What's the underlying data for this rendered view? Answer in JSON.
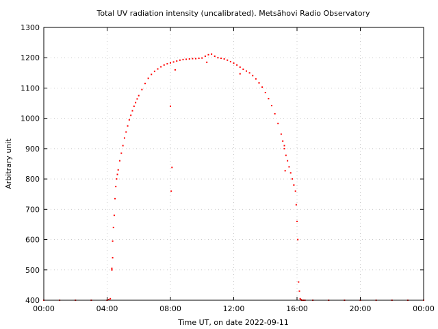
{
  "chart_data": {
    "type": "scatter",
    "title": "Total UV radiation intensity (uncalibrated). Metsähovi Radio Observatory",
    "xlabel": "Time UT, on date 2022-09-11",
    "ylabel": "Arbitrary unit",
    "xlim": [
      0,
      24
    ],
    "ylim": [
      400,
      1300
    ],
    "x_ticks": [
      0,
      4,
      8,
      12,
      16,
      20,
      24
    ],
    "x_tick_labels": [
      "00:00",
      "04:00",
      "08:00",
      "12:00",
      "16:00",
      "20:00",
      "00:00"
    ],
    "y_ticks": [
      400,
      500,
      600,
      700,
      800,
      900,
      1000,
      1100,
      1200,
      1300
    ],
    "y_tick_labels": [
      "400",
      "500",
      "600",
      "700",
      "800",
      "900",
      "1000",
      "1100",
      "1200",
      "1300"
    ],
    "grid": true,
    "color": "#ff0000",
    "series": [
      {
        "x": [
          0.0,
          1.0,
          2.0,
          3.0,
          4.0,
          4.1,
          4.2,
          4.3,
          4.35,
          4.4,
          4.45,
          4.5,
          4.55,
          4.6,
          4.65,
          4.7,
          4.8,
          4.9,
          5.0,
          5.1,
          5.2,
          5.3,
          5.4,
          5.5,
          5.6,
          5.7,
          5.8,
          5.9,
          6.0,
          6.2,
          6.4,
          6.6,
          6.8,
          7.0,
          7.2,
          7.4,
          7.6,
          7.8,
          8.0,
          8.2,
          8.4,
          8.6,
          8.8,
          9.0,
          9.2,
          9.4,
          9.6,
          9.8,
          10.0,
          10.2,
          10.4,
          10.6,
          10.8,
          11.0,
          11.2,
          11.4,
          11.6,
          11.8,
          12.0,
          12.2,
          12.4,
          12.6,
          12.8,
          13.0,
          13.2,
          13.4,
          13.6,
          13.8,
          14.0,
          14.2,
          14.4,
          14.6,
          14.8,
          15.0,
          15.1,
          15.2,
          15.3,
          15.4,
          15.5,
          15.6,
          15.7,
          15.8,
          15.9,
          15.95,
          16.0,
          16.05,
          16.1,
          16.15,
          16.2,
          16.25,
          16.3,
          16.4,
          16.5,
          17.0,
          18.0,
          19.0,
          20.0,
          21.0,
          22.0,
          23.0,
          24.0,
          4.3,
          4.35,
          8.0,
          8.05,
          8.1,
          8.3,
          10.3,
          12.4,
          15.2,
          15.25
        ],
        "y": [
          400,
          400,
          400,
          400,
          400,
          402,
          405,
          500,
          540,
          640,
          680,
          735,
          775,
          800,
          815,
          830,
          860,
          885,
          910,
          935,
          955,
          975,
          995,
          1010,
          1025,
          1040,
          1052,
          1064,
          1075,
          1095,
          1115,
          1132,
          1145,
          1155,
          1163,
          1170,
          1176,
          1180,
          1183,
          1186,
          1189,
          1192,
          1194,
          1195,
          1196,
          1197,
          1197,
          1198,
          1199,
          1205,
          1210,
          1212,
          1205,
          1200,
          1198,
          1196,
          1192,
          1187,
          1182,
          1176,
          1169,
          1162,
          1156,
          1150,
          1141,
          1130,
          1117,
          1103,
          1085,
          1065,
          1042,
          1015,
          983,
          948,
          925,
          900,
          878,
          860,
          840,
          820,
          800,
          780,
          760,
          715,
          660,
          600,
          460,
          430,
          405,
          402,
          400,
          400,
          400,
          400,
          400,
          400,
          400,
          400,
          400,
          400,
          400,
          505,
          595,
          1040,
          760,
          838,
          1160,
          1185,
          1147,
          910,
          827
        ]
      }
    ]
  }
}
